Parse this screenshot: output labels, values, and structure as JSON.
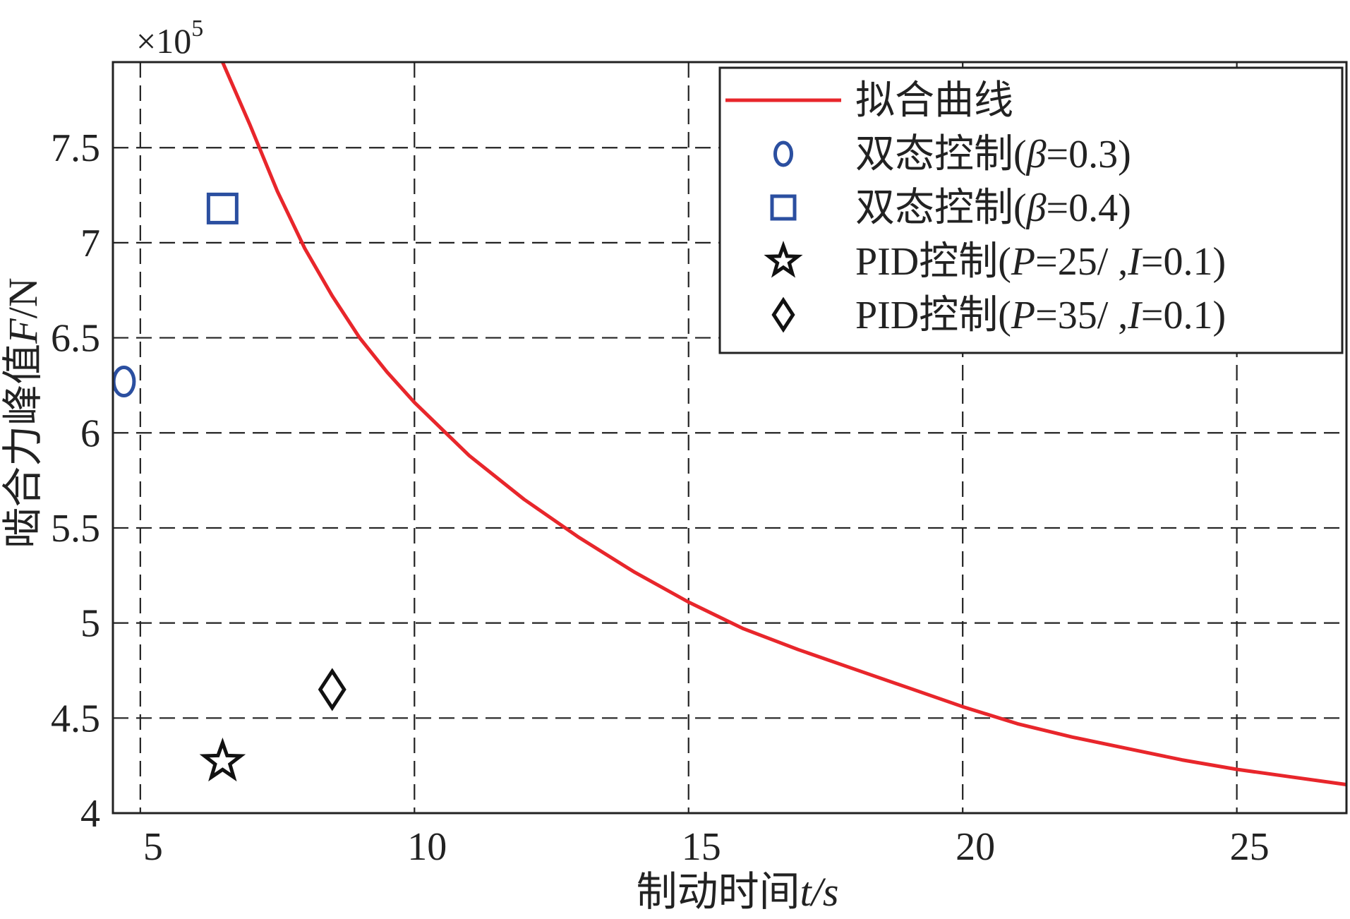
{
  "chart_data": {
    "type": "scatter",
    "xlabel": "制动时间t/s",
    "ylabel": "啮合力峰值F/N",
    "y_multiplier": "×10",
    "y_multiplier_exp": "5",
    "xlim": [
      4.5,
      27
    ],
    "ylim": [
      4.0,
      7.95
    ],
    "grid": true,
    "grid_style": "dashed",
    "x_ticks": [
      5,
      10,
      15,
      20,
      25
    ],
    "x_tick_labels": [
      "5",
      "10",
      "15",
      "20",
      "25"
    ],
    "y_ticks": [
      4,
      4.5,
      5,
      5.5,
      6,
      6.5,
      7,
      7.5
    ],
    "y_tick_labels": [
      "4",
      "4.5",
      "5",
      "5.5",
      "6",
      "6.5",
      "7",
      "7.5"
    ],
    "legend_position": "top-right",
    "series": [
      {
        "name": "拟合曲线",
        "kind": "line",
        "color": "#e8262b",
        "x": [
          6.5,
          7,
          7.5,
          8,
          8.5,
          9,
          9.5,
          10,
          11,
          12,
          13,
          14,
          15,
          16,
          17,
          18,
          19,
          20,
          21,
          22,
          23,
          24,
          25,
          26,
          27
        ],
        "y": [
          7.95,
          7.62,
          7.27,
          6.97,
          6.72,
          6.5,
          6.32,
          6.16,
          5.88,
          5.65,
          5.45,
          5.27,
          5.11,
          4.97,
          4.86,
          4.76,
          4.66,
          4.56,
          4.47,
          4.4,
          4.34,
          4.28,
          4.23,
          4.19,
          4.15
        ]
      },
      {
        "name": "双态控制(β=0.3)",
        "name_prefix": "双态控制(",
        "name_param": "β",
        "name_suffix": "=0.3)",
        "kind": "marker",
        "marker": "circle",
        "color": "#2b4fa0",
        "x": [
          4.7
        ],
        "y": [
          6.27
        ]
      },
      {
        "name": "双态控制(β=0.4)",
        "name_prefix": "双态控制(",
        "name_param": "β",
        "name_suffix": "=0.4)",
        "kind": "marker",
        "marker": "square",
        "color": "#2b4fa0",
        "x": [
          6.5
        ],
        "y": [
          7.18
        ]
      },
      {
        "name": "PID控制(P=25/ ,I=0.1)",
        "name_prefix": "PID控制(",
        "name_param": "P",
        "name_suffix": "=25/  ,",
        "name_param2": "I",
        "name_suffix2": "=0.1)",
        "kind": "marker",
        "marker": "star",
        "color": "#111111",
        "x": [
          6.5
        ],
        "y": [
          4.27
        ]
      },
      {
        "name": "PID控制(P=35/ ,I=0.1)",
        "name_prefix": "PID控制(",
        "name_param": "P",
        "name_suffix": "=35/  ,",
        "name_param2": "I",
        "name_suffix2": "=0.1)",
        "kind": "marker",
        "marker": "diamond",
        "color": "#111111",
        "x": [
          8.5
        ],
        "y": [
          4.65
        ]
      }
    ]
  }
}
